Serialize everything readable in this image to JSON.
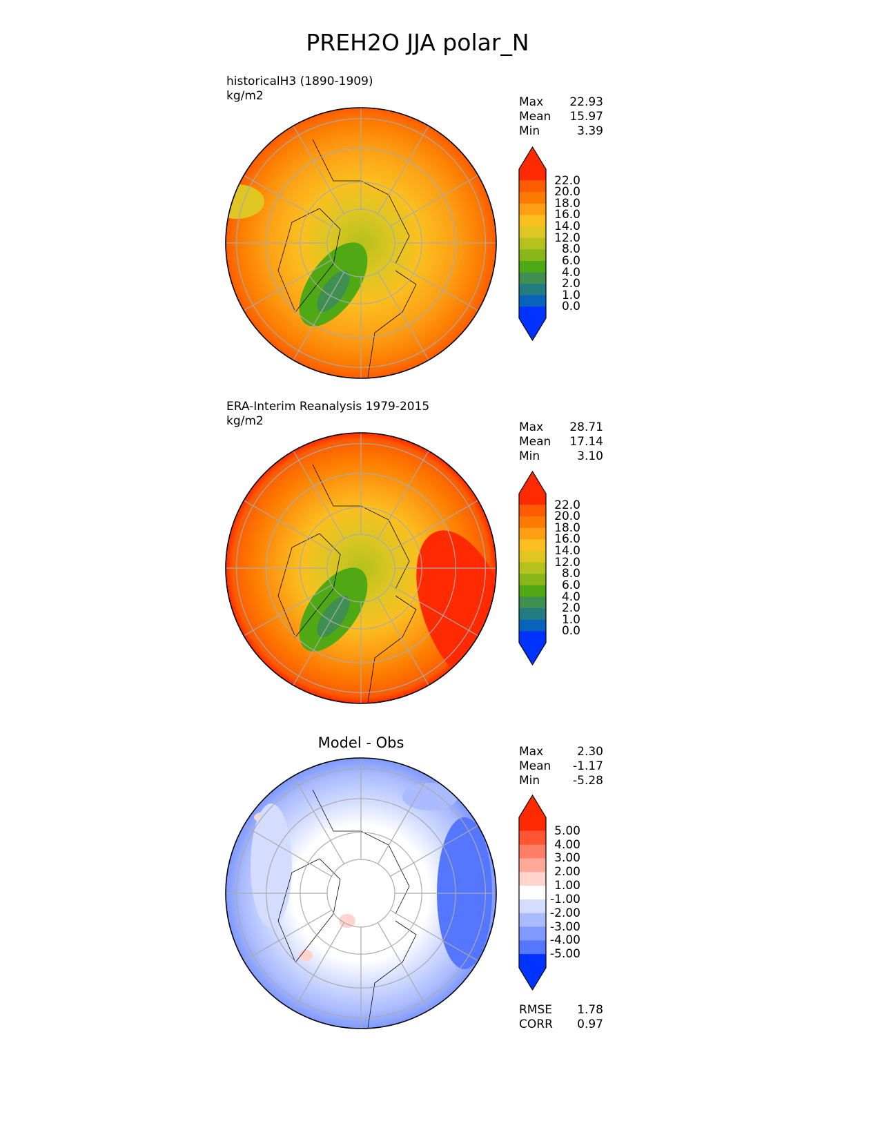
{
  "title": "PREH2O JJA polar_N",
  "panels": [
    {
      "label_line1": "historicalH3 (1890-1909)",
      "label_line2": "kg/m2",
      "stats": [
        {
          "k": "Max",
          "v": "22.93"
        },
        {
          "k": "Mean",
          "v": "15.97"
        },
        {
          "k": "Min",
          "v": "3.39"
        }
      ],
      "colorbar": {
        "ticks": [
          "22.0",
          "20.0",
          "18.0",
          "16.0",
          "14.0",
          "12.0",
          "8.0",
          "6.0",
          "4.0",
          "2.0",
          "1.0",
          "0.0"
        ]
      }
    },
    {
      "label_line1": "ERA-Interim Reanalysis 1979-2015",
      "label_line2": "kg/m2",
      "stats": [
        {
          "k": "Max",
          "v": "28.71"
        },
        {
          "k": "Mean",
          "v": "17.14"
        },
        {
          "k": "Min",
          "v": "3.10"
        }
      ],
      "colorbar": {
        "ticks": [
          "22.0",
          "20.0",
          "18.0",
          "16.0",
          "14.0",
          "12.0",
          "8.0",
          "6.0",
          "4.0",
          "2.0",
          "1.0",
          "0.0"
        ]
      }
    },
    {
      "title": "Model - Obs",
      "stats": [
        {
          "k": "Max",
          "v": "2.30"
        },
        {
          "k": "Mean",
          "v": "-1.17"
        },
        {
          "k": "Min",
          "v": "-5.28"
        }
      ],
      "colorbar": {
        "ticks": [
          "5.00",
          "4.00",
          "3.00",
          "2.00",
          "1.00",
          "-1.00",
          "-2.00",
          "-3.00",
          "-4.00",
          "-5.00"
        ]
      },
      "metrics": [
        {
          "k": "RMSE",
          "v": "1.78"
        },
        {
          "k": "CORR",
          "v": "0.97"
        }
      ]
    }
  ],
  "colors": {
    "abs_scale": [
      "#ff2a00",
      "#fd5c00",
      "#fd7b00",
      "#fd9f15",
      "#fbbf1f",
      "#dfc623",
      "#b5c11c",
      "#89b618",
      "#4fa814",
      "#3f8f50",
      "#237c82",
      "#0863bb",
      "#0033ff"
    ],
    "diff_scale": [
      "#ff2a00",
      "#ff5533",
      "#ff7f66",
      "#ffaa99",
      "#ffd4cc",
      "#ffffff",
      "#d4ddff",
      "#aabbff",
      "#7f99ff",
      "#5577ff",
      "#3355ff",
      "#0033ff"
    ]
  }
}
